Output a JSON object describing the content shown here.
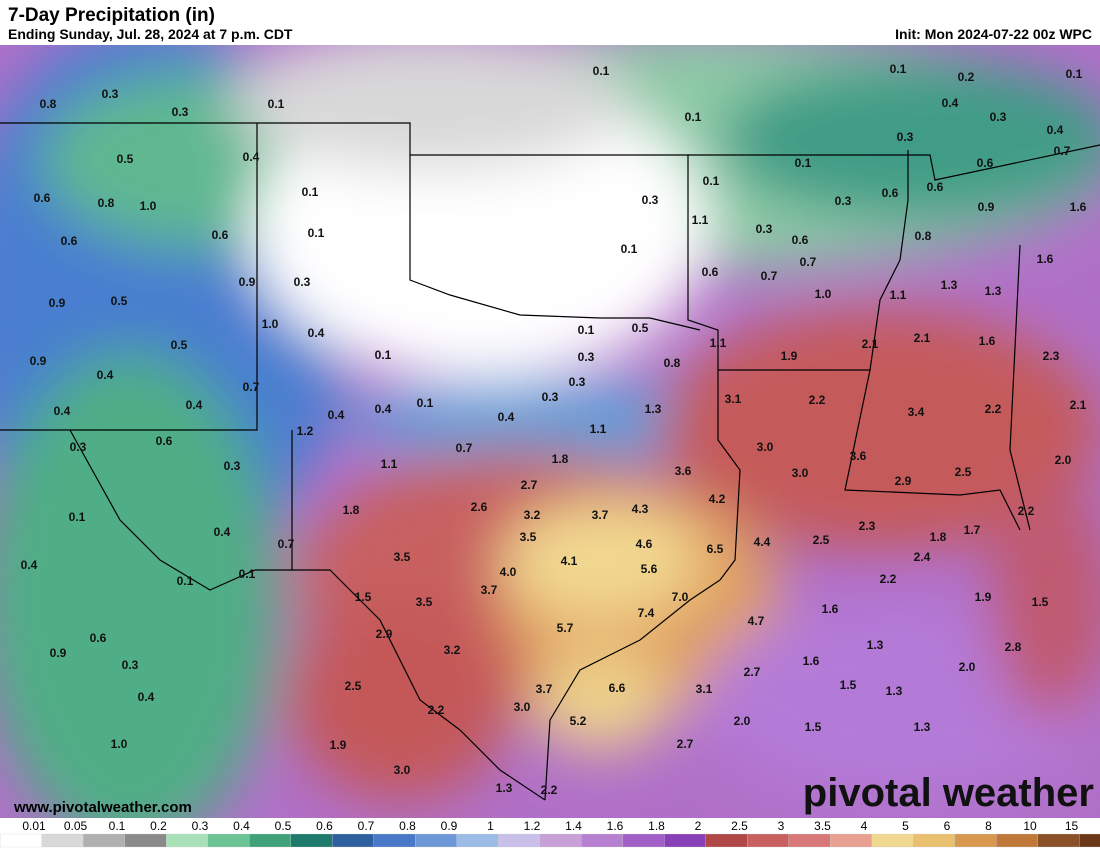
{
  "header": {
    "title": "7-Day Precipitation (in)",
    "subtitle": "Ending Sunday, Jul. 28, 2024 at 7 p.m. CDT",
    "init": "Init: Mon 2024-07-22 00z WPC"
  },
  "map": {
    "labels": [
      "0.8",
      "0.3",
      "0.3",
      "0.1",
      "0.1",
      "0.1",
      "0.1",
      "0.2",
      "0.1",
      "0.4",
      "0.3",
      "0.4",
      "0.5",
      "0.4",
      "0.3",
      "0.1",
      "0.6",
      "0.7",
      "0.6",
      "0.8",
      "1.0",
      "0.1",
      "0.1",
      "0.3",
      "0.3",
      "0.6",
      "0.6",
      "0.9",
      "1.6",
      "0.6",
      "0.6",
      "0.1",
      "1.1",
      "0.3",
      "0.6",
      "0.8",
      "0.1",
      "1.6",
      "0.9",
      "0.5",
      "0.9",
      "0.3",
      "0.6",
      "0.7",
      "0.7",
      "1.0",
      "1.1",
      "1.3",
      "1.3",
      "1.0",
      "0.4",
      "0.1",
      "0.5",
      "1.1",
      "1.9",
      "2.1",
      "2.1",
      "1.6",
      "2.3",
      "0.9",
      "0.5",
      "0.1",
      "0.3",
      "0.8",
      "0.4",
      "0.7",
      "0.3",
      "0.4",
      "0.4",
      "0.4",
      "0.4",
      "0.1",
      "0.3",
      "0.4",
      "1.3",
      "3.1",
      "2.2",
      "3.4",
      "2.2",
      "2.1",
      "0.3",
      "0.6",
      "1.2",
      "0.7",
      "1.1",
      "3.0",
      "3.6",
      "2.0",
      "0.3",
      "1.1",
      "1.8",
      "3.6",
      "3.0",
      "2.9",
      "2.5",
      "0.1",
      "1.8",
      "2.7",
      "2.6",
      "3.2",
      "3.7",
      "4.3",
      "4.2",
      "2.3",
      "1.7",
      "2.2",
      "0.4",
      "0.7",
      "3.5",
      "4.6",
      "6.5",
      "4.4",
      "2.5",
      "1.8",
      "2.4",
      "0.4",
      "0.1",
      "0.1",
      "3.5",
      "4.0",
      "4.1",
      "5.6",
      "3.7",
      "1.5",
      "3.5",
      "7.0",
      "2.2",
      "1.9",
      "1.5",
      "1.6",
      "7.4",
      "4.7",
      "0.6",
      "2.9",
      "5.7",
      "3.2",
      "1.3",
      "2.8",
      "0.9",
      "0.3",
      "1.6",
      "2.7",
      "2.0",
      "2.5",
      "6.6",
      "3.1",
      "1.5",
      "1.3",
      "0.4",
      "3.7",
      "3.0",
      "2.2",
      "5.2",
      "2.0",
      "1.5",
      "1.3",
      "1.0",
      "1.9",
      "2.7",
      "3.0",
      "1.3",
      "2.2"
    ]
  },
  "footer": {
    "website": "www.pivotalweather.com",
    "logo": "pivotal weather"
  },
  "legend": {
    "labels": [
      "0.01",
      "0.05",
      "0.1",
      "0.2",
      "0.3",
      "0.4",
      "0.5",
      "0.6",
      "0.7",
      "0.8",
      "0.9",
      "1",
      "1.2",
      "1.4",
      "1.6",
      "1.8",
      "2",
      "2.5",
      "3",
      "3.5",
      "4",
      "5",
      "6",
      "8",
      "10",
      "15"
    ]
  }
}
